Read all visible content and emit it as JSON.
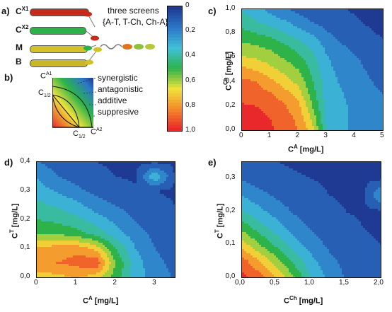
{
  "panels": {
    "a": "a)",
    "b": "b)",
    "c": "c)",
    "d": "d)",
    "e": "e)"
  },
  "schematic": {
    "rows": [
      {
        "base": "C",
        "sup": "X1",
        "color": "#c52a1a"
      },
      {
        "base": "C",
        "sup": "X2",
        "color": "#2bb34a"
      },
      {
        "base": "M",
        "sup": "",
        "color": "#d2c229"
      },
      {
        "base": "B",
        "sup": "",
        "color": "#c9b729"
      }
    ],
    "screens_title": "three screens",
    "screens_list": "{A-T, T-Ch, Ch-A}",
    "isobologram": {
      "y_top_base": "C",
      "y_top_sup": "A1",
      "y_half_base": "C",
      "y_half_sub": "1/2",
      "x_half_base": "C",
      "x_half_sub": "1/2",
      "x_end_base": "C",
      "x_end_sup": "A2",
      "labels": [
        "synergistic",
        "antagonistic",
        "additive",
        "suppresive"
      ]
    }
  },
  "colorbar": {
    "ticks": [
      "0",
      "0,2",
      "0,4",
      "0,6",
      "0,8",
      "1,0"
    ],
    "colors": [
      "#1f3a93",
      "#2b78c8",
      "#3fc0d8",
      "#2db34a",
      "#f0e23a",
      "#f58a2a",
      "#e8282a"
    ]
  },
  "chart_data": [
    {
      "type": "heatmap",
      "panel": "c",
      "xlabel": {
        "base": "C",
        "sup": "A",
        "unit": "[mg/L]"
      },
      "ylabel": {
        "base": "C",
        "sup": "Ch",
        "unit": "[mg/L]"
      },
      "xlim": [
        0,
        5
      ],
      "ylim": [
        0,
        1.0
      ],
      "xticks": [
        "0",
        "1",
        "2",
        "3",
        "4",
        "5"
      ],
      "yticks": [
        "0,0",
        "0,2",
        "0,4",
        "0,6",
        "0,8",
        "1,0"
      ],
      "x": [
        0,
        0.5,
        1,
        1.5,
        2,
        2.5,
        3,
        3.5,
        4,
        4.5,
        5
      ],
      "y": [
        0,
        0.1,
        0.2,
        0.3,
        0.4,
        0.5,
        0.6,
        0.7,
        0.8,
        0.9,
        1.0
      ],
      "z": [
        [
          0.98,
          0.98,
          0.96,
          0.93,
          0.85,
          0.7,
          0.35,
          0.25,
          0.25,
          0.2,
          0.18
        ],
        [
          0.98,
          0.98,
          0.95,
          0.9,
          0.82,
          0.62,
          0.32,
          0.26,
          0.24,
          0.2,
          0.18
        ],
        [
          0.96,
          0.95,
          0.92,
          0.86,
          0.78,
          0.55,
          0.32,
          0.26,
          0.24,
          0.2,
          0.16
        ],
        [
          0.92,
          0.9,
          0.86,
          0.8,
          0.7,
          0.5,
          0.3,
          0.26,
          0.22,
          0.18,
          0.15
        ],
        [
          0.88,
          0.85,
          0.78,
          0.7,
          0.62,
          0.46,
          0.3,
          0.24,
          0.2,
          0.16,
          0.12
        ],
        [
          0.78,
          0.74,
          0.68,
          0.62,
          0.55,
          0.42,
          0.28,
          0.22,
          0.18,
          0.14,
          0.1
        ],
        [
          0.66,
          0.64,
          0.6,
          0.54,
          0.48,
          0.38,
          0.26,
          0.2,
          0.16,
          0.12,
          0.08
        ],
        [
          0.58,
          0.55,
          0.52,
          0.46,
          0.4,
          0.32,
          0.22,
          0.16,
          0.12,
          0.1,
          0.06
        ],
        [
          0.48,
          0.45,
          0.42,
          0.36,
          0.3,
          0.24,
          0.16,
          0.12,
          0.08,
          0.06,
          0.04
        ],
        [
          0.4,
          0.36,
          0.3,
          0.26,
          0.2,
          0.14,
          0.1,
          0.08,
          0.06,
          0.04,
          0.03
        ],
        [
          0.34,
          0.28,
          0.22,
          0.16,
          0.12,
          0.1,
          0.08,
          0.06,
          0.04,
          0.03,
          0.02
        ]
      ]
    },
    {
      "type": "heatmap",
      "panel": "d",
      "xlabel": {
        "base": "C",
        "sup": "A",
        "unit": "[mg/L]"
      },
      "ylabel": {
        "base": "C",
        "sup": "T",
        "unit": "[mg/L]"
      },
      "xlim": [
        0,
        3.5
      ],
      "ylim": [
        0,
        0.4
      ],
      "xticks": [
        "0",
        "1",
        "2",
        "3"
      ],
      "yticks": [
        "0,0",
        "0,1",
        "0,2",
        "0,3",
        "0,4"
      ],
      "x": [
        0,
        0.5,
        1,
        1.5,
        2,
        2.5,
        3,
        3.5
      ],
      "y": [
        0,
        0.05,
        0.1,
        0.15,
        0.2,
        0.25,
        0.3,
        0.35,
        0.4
      ],
      "z": [
        [
          0.7,
          0.72,
          0.76,
          0.7,
          0.5,
          0.3,
          0.2,
          0.14
        ],
        [
          0.82,
          0.85,
          0.88,
          0.95,
          0.55,
          0.3,
          0.18,
          0.12
        ],
        [
          0.78,
          0.8,
          0.82,
          0.72,
          0.45,
          0.25,
          0.15,
          0.1
        ],
        [
          0.55,
          0.55,
          0.5,
          0.42,
          0.3,
          0.2,
          0.12,
          0.08
        ],
        [
          0.45,
          0.42,
          0.38,
          0.3,
          0.22,
          0.14,
          0.1,
          0.06
        ],
        [
          0.38,
          0.34,
          0.28,
          0.2,
          0.15,
          0.1,
          0.07,
          0.05
        ],
        [
          0.3,
          0.24,
          0.18,
          0.12,
          0.08,
          0.06,
          0.05,
          0.04
        ],
        [
          0.24,
          0.16,
          0.1,
          0.07,
          0.05,
          0.04,
          0.35,
          0.04
        ],
        [
          0.16,
          0.1,
          0.06,
          0.05,
          0.04,
          0.03,
          0.03,
          0.03
        ]
      ]
    },
    {
      "type": "heatmap",
      "panel": "e",
      "xlabel": {
        "base": "C",
        "sup": "Ch",
        "unit": "[mg/L]"
      },
      "ylabel": {
        "base": "C",
        "sup": "T",
        "unit": "[mg/L]"
      },
      "xlim": [
        0,
        2.0
      ],
      "ylim": [
        0,
        0.35
      ],
      "xticks": [
        "0,0",
        "0,5",
        "1,0",
        "1,5",
        "2,0"
      ],
      "yticks": [
        "0,0",
        "0,1",
        "0,2",
        "0,3"
      ],
      "x": [
        0,
        0.25,
        0.5,
        0.75,
        1.0,
        1.25,
        1.5,
        1.75,
        2.0
      ],
      "y": [
        0,
        0.05,
        0.1,
        0.15,
        0.2,
        0.25,
        0.3,
        0.35
      ],
      "z": [
        [
          0.98,
          0.9,
          0.75,
          0.55,
          0.35,
          0.22,
          0.14,
          0.1,
          0.08
        ],
        [
          0.9,
          0.75,
          0.58,
          0.42,
          0.28,
          0.18,
          0.12,
          0.08,
          0.06
        ],
        [
          0.7,
          0.55,
          0.42,
          0.3,
          0.2,
          0.13,
          0.09,
          0.06,
          0.05
        ],
        [
          0.52,
          0.4,
          0.3,
          0.2,
          0.14,
          0.1,
          0.07,
          0.05,
          0.04
        ],
        [
          0.36,
          0.28,
          0.2,
          0.14,
          0.1,
          0.07,
          0.05,
          0.04,
          0.03
        ],
        [
          0.24,
          0.18,
          0.13,
          0.1,
          0.07,
          0.05,
          0.04,
          0.03,
          0.25
        ],
        [
          0.14,
          0.1,
          0.08,
          0.06,
          0.05,
          0.04,
          0.03,
          0.03,
          0.03
        ],
        [
          0.08,
          0.06,
          0.05,
          0.04,
          0.03,
          0.03,
          0.02,
          0.02,
          0.02
        ]
      ]
    }
  ]
}
